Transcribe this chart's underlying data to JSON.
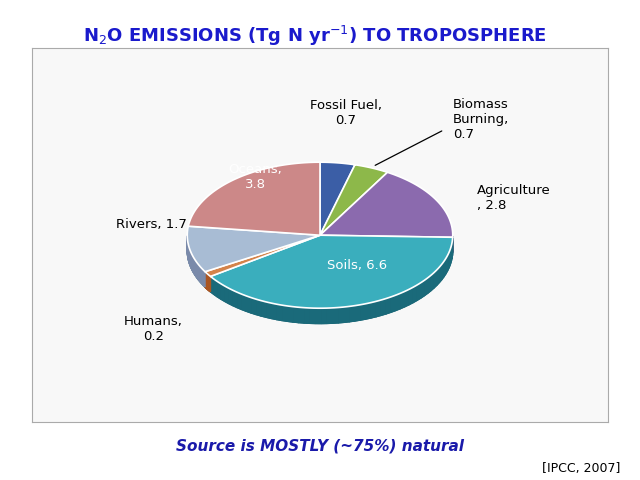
{
  "values": [
    6.6,
    2.8,
    0.7,
    0.7,
    3.8,
    1.7,
    0.2
  ],
  "colors": [
    "#3aaebd",
    "#8b6aae",
    "#8db84a",
    "#3b5ea6",
    "#cc8888",
    "#a8bcd4",
    "#d4834a"
  ],
  "shadow_colors": [
    "#1a6a7a",
    "#5a4a7a",
    "#5a7a2a",
    "#1a3a6a",
    "#aa5555",
    "#7a8aaa",
    "#aa5522"
  ],
  "labels": [
    "Soils, 6.6",
    "Agriculture\n, 2.8",
    "Biomass\nBurning,\n0.7",
    "Fossil Fuel,\n0.7",
    "Oceans,\n3.8",
    "Rivers, 1.7",
    "Humans,\n0.2"
  ],
  "start_angle": 180,
  "title": "N$_2$O EMISSIONS (Tg N yr$^{-1}$) TO TROPOSPHERE",
  "title_color": "#1a1acc",
  "title_fontsize": 13,
  "subtitle": "Source is MOSTLY (~75%) natural",
  "subtitle_color": "#1a1aaa",
  "subtitle_fontsize": 11,
  "reference": "[IPCC, 2007]",
  "background_color": "#ffffff",
  "box_facecolor": "#f8f8f8",
  "box_edgecolor": "#aaaaaa",
  "label_fontsize": 9.5,
  "3d_depth": 0.07,
  "ellipse_ratio": 0.55
}
